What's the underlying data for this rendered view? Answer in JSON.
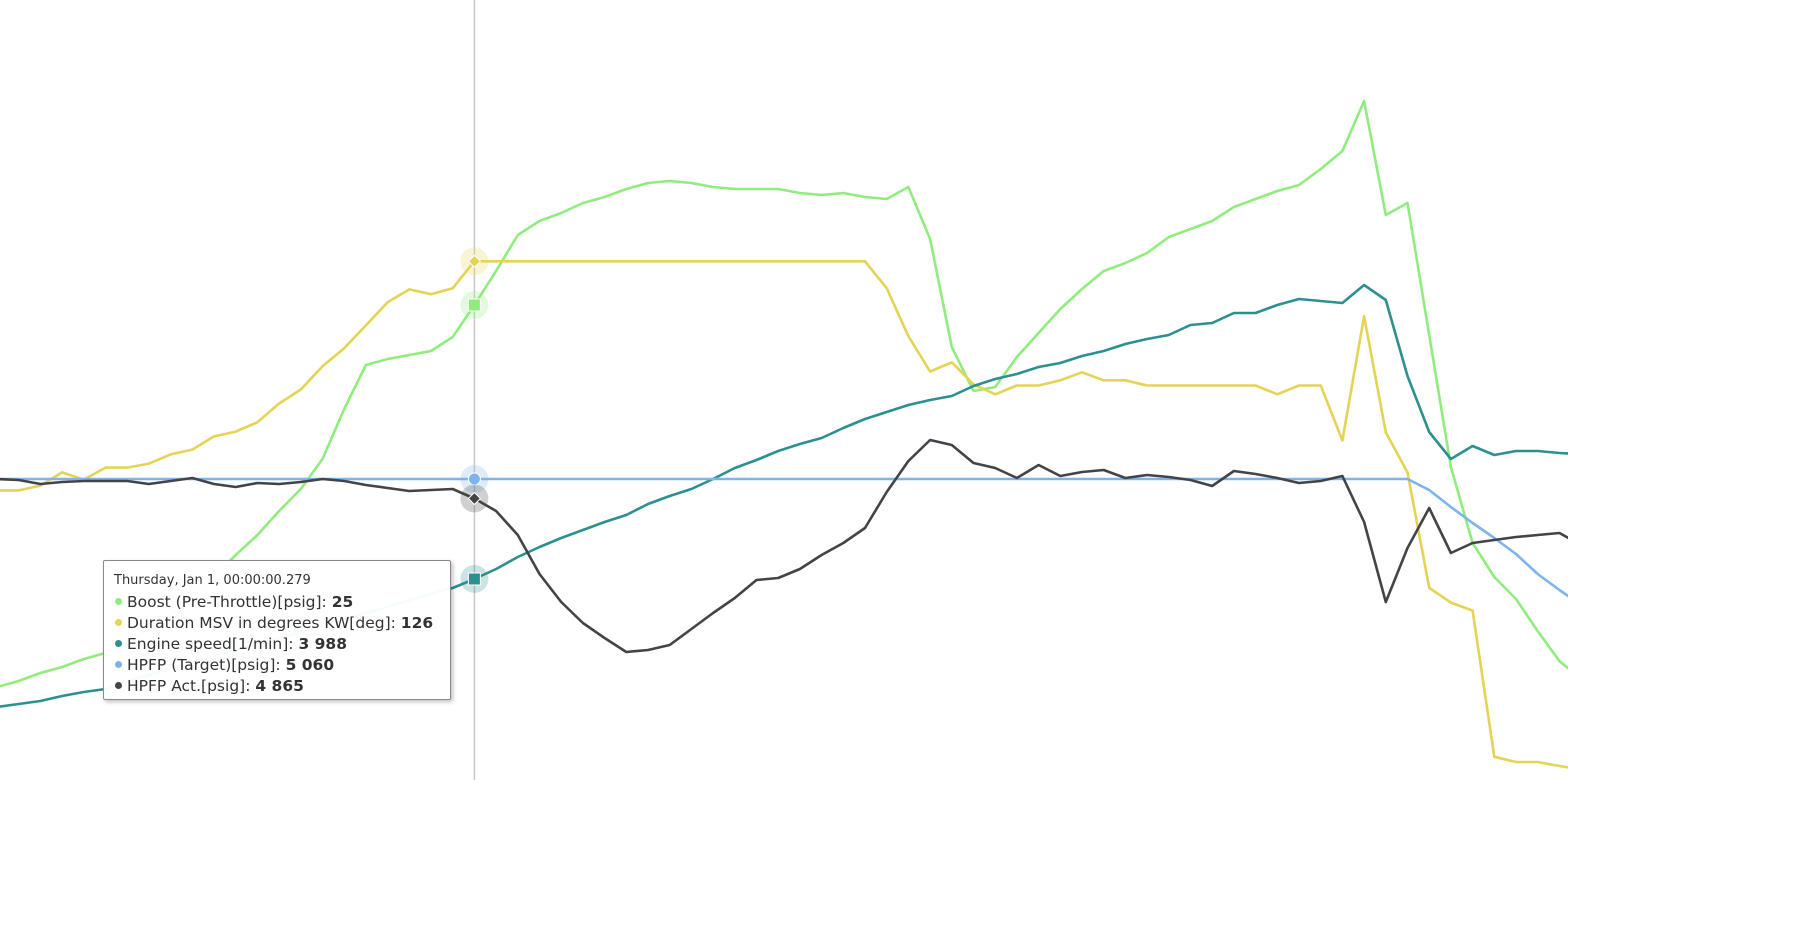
{
  "chart_data": {
    "type": "line",
    "series": [
      {
        "name": "Boost (Pre-Throttle)[psig]",
        "color": "#90ed7d",
        "marker": "square",
        "ylim": [
          1.25,
          40.25
        ],
        "values": [
          5.9,
          6.2,
          6.6,
          6.9,
          7.3,
          7.6,
          8.1,
          8.8,
          9.5,
          10.4,
          11.4,
          12.5,
          13.5,
          14.7,
          15.8,
          17.3,
          19.8,
          22,
          22.3,
          22.5,
          22.7,
          23.4,
          25,
          26.7,
          28.5,
          29.2,
          29.6,
          30.1,
          30.4,
          30.8,
          31.1,
          31.2,
          31.1,
          30.9,
          30.8,
          30.8,
          30.8,
          30.6,
          30.5,
          30.6,
          30.4,
          30.3,
          30.9,
          28.3,
          22.9,
          20.7,
          20.9,
          22.4,
          23.6,
          24.8,
          25.8,
          26.7,
          27.1,
          27.6,
          28.4,
          28.8,
          29.2,
          29.9,
          30.3,
          30.7,
          31.0,
          31.8,
          32.7,
          35.2,
          29.5,
          30.1,
          23.5,
          16.9,
          13.1,
          11.4,
          10.3,
          8.7,
          7.2,
          6.3
        ]
      },
      {
        "name": "Duration MSV in degrees KW[deg]",
        "color": "#e4d354",
        "marker": "diamond",
        "ylim": [
          -3.5,
          191.25
        ],
        "values": [
          68.8,
          68.8,
          70,
          73.3,
          71.5,
          74.5,
          74.5,
          75.5,
          77.8,
          79,
          82.3,
          83.5,
          85.8,
          90.5,
          94,
          99.8,
          104.3,
          110,
          115.8,
          119,
          117.8,
          119.3,
          126,
          126,
          126,
          126,
          126,
          126,
          126,
          126,
          126,
          126,
          126,
          126,
          126,
          126,
          126,
          126,
          126,
          126,
          126,
          119.3,
          107.3,
          98.5,
          100.8,
          95.3,
          92.8,
          95,
          95,
          96.3,
          98.3,
          96.3,
          96.3,
          95,
          95,
          95,
          95,
          95,
          95,
          92.8,
          95,
          95,
          81.3,
          112.3,
          83.3,
          73.3,
          44.5,
          40.8,
          38.8,
          2.3,
          1,
          1,
          0,
          -0.8
        ]
      },
      {
        "name": "Engine speed[1/min]",
        "color": "#2b908f",
        "marker": "square",
        "ylim": [
          1978,
          9778
        ],
        "values": [
          2708,
          2738,
          2768,
          2818,
          2858,
          2888,
          2968,
          3028,
          3088,
          3148,
          3218,
          3278,
          3338,
          3398,
          3458,
          3528,
          3588,
          3648,
          3708,
          3778,
          3838,
          3898,
          3988,
          4088,
          4208,
          4308,
          4398,
          4478,
          4558,
          4628,
          4738,
          4818,
          4888,
          4988,
          5098,
          5178,
          5268,
          5338,
          5398,
          5498,
          5588,
          5658,
          5728,
          5778,
          5818,
          5918,
          5988,
          6038,
          6108,
          6148,
          6218,
          6268,
          6338,
          6388,
          6428,
          6528,
          6548,
          6648,
          6648,
          6728,
          6788,
          6768,
          6748,
          6928,
          6778,
          6018,
          5458,
          5188,
          5318,
          5228,
          5268,
          5268,
          5248,
          5238
        ]
      },
      {
        "name": "HPFP (Target)[psig]",
        "color": "#7cb5ec",
        "marker": "circle",
        "ylim": [
          2050,
          9850
        ],
        "values": [
          5060,
          5060,
          5060,
          5060,
          5060,
          5060,
          5060,
          5060,
          5060,
          5060,
          5060,
          5060,
          5060,
          5060,
          5060,
          5060,
          5060,
          5060,
          5060,
          5060,
          5060,
          5060,
          5060,
          5060,
          5060,
          5060,
          5060,
          5060,
          5060,
          5060,
          5060,
          5060,
          5060,
          5060,
          5060,
          5060,
          5060,
          5060,
          5060,
          5060,
          5060,
          5060,
          5060,
          5060,
          5060,
          5060,
          5060,
          5060,
          5060,
          5060,
          5060,
          5060,
          5060,
          5060,
          5060,
          5060,
          5060,
          5060,
          5060,
          5060,
          5060,
          5060,
          5060,
          5060,
          5060,
          5060,
          4950,
          4780,
          4620,
          4470,
          4310,
          4110,
          3950,
          3800
        ]
      },
      {
        "name": "HPFP Act.[psig]",
        "color": "#434348",
        "marker": "diamond",
        "ylim": [
          2050,
          9850
        ],
        "values": [
          5060,
          5050,
          5010,
          5030,
          5040,
          5040,
          5040,
          5010,
          5040,
          5070,
          5010,
          4980,
          5020,
          5010,
          5030,
          5060,
          5040,
          5000,
          4970,
          4940,
          4950,
          4960,
          4865,
          4740,
          4500,
          4110,
          3830,
          3620,
          3470,
          3330,
          3350,
          3400,
          3560,
          3720,
          3870,
          4050,
          4070,
          4160,
          4300,
          4420,
          4570,
          4930,
          5240,
          5450,
          5400,
          5220,
          5170,
          5070,
          5200,
          5090,
          5130,
          5150,
          5070,
          5100,
          5080,
          5050,
          4990,
          5140,
          5110,
          5070,
          5020,
          5040,
          5090,
          4630,
          3830,
          4370,
          4770,
          4320,
          4420,
          4450,
          4480,
          4500,
          4520,
          4400
        ]
      }
    ],
    "tooltip": {
      "title": "Thursday, Jan 1, 00:00:00.279",
      "values": [
        25,
        126,
        3988,
        5060,
        4865
      ],
      "value_labels": [
        "25",
        "126",
        "3 988",
        "5 060",
        "4 865"
      ]
    }
  }
}
